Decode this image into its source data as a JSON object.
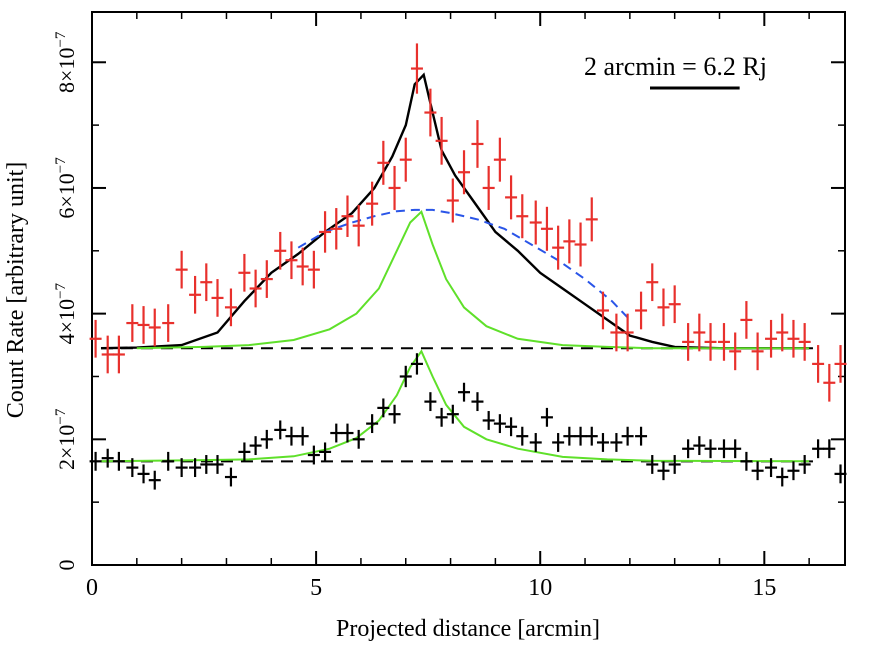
{
  "chart_data": {
    "type": "scatter",
    "title": "",
    "xlabel": "Projected distance [arcmin]",
    "ylabel": "Count Rate [arbitrary unit]",
    "xlim": [
      0,
      16.8
    ],
    "ylim": [
      0,
      8.8
    ],
    "x_ticks": [
      0,
      5,
      10,
      15
    ],
    "x_tick_labels": [
      "0",
      "5",
      "10",
      "15"
    ],
    "y_ticks": [
      0,
      2,
      4,
      6,
      8
    ],
    "y_tick_labels": [
      {
        "mantissa": "",
        "exp": "",
        "plain": "0"
      },
      {
        "mantissa": "2×10",
        "exp": "−7",
        "plain": ""
      },
      {
        "mantissa": "4×10",
        "exp": "−7",
        "plain": ""
      },
      {
        "mantissa": "6×10",
        "exp": "−7",
        "plain": ""
      },
      {
        "mantissa": "8×10",
        "exp": "−7",
        "plain": ""
      }
    ],
    "y_unit_note": "y values in units of 1e-7",
    "annotation": {
      "text": "2 arcmin = 6.2 Rj",
      "scale_bar_arcmin": 2
    },
    "colors": {
      "red_data": "#e8302c",
      "black_data": "#000000",
      "total_model": "#000000",
      "broad_model": "#2a55e8",
      "narrow_model": "#5fe02a",
      "baseline": "#000000"
    },
    "series": [
      {
        "name": "red data",
        "x": [
          0.08,
          0.35,
          0.6,
          0.9,
          1.15,
          1.4,
          1.7,
          2.0,
          2.3,
          2.55,
          2.8,
          3.1,
          3.4,
          3.65,
          3.9,
          4.2,
          4.45,
          4.7,
          4.95,
          5.2,
          5.45,
          5.7,
          5.95,
          6.25,
          6.5,
          6.75,
          7.0,
          7.25,
          7.55,
          7.8,
          8.05,
          8.3,
          8.6,
          8.85,
          9.1,
          9.35,
          9.6,
          9.9,
          10.15,
          10.4,
          10.65,
          10.9,
          11.15,
          11.4,
          11.7,
          11.95,
          12.25,
          12.5,
          12.75,
          13.0,
          13.3,
          13.55,
          13.8,
          14.1,
          14.35,
          14.6,
          14.85,
          15.15,
          15.4,
          15.65,
          15.9,
          16.2,
          16.45,
          16.7
        ],
        "y": [
          3.6,
          3.35,
          3.35,
          3.85,
          3.82,
          3.78,
          3.85,
          4.7,
          4.3,
          4.5,
          4.25,
          4.1,
          4.65,
          4.4,
          4.55,
          5.0,
          4.85,
          4.75,
          4.7,
          5.3,
          5.35,
          5.55,
          5.4,
          5.75,
          6.4,
          6.0,
          6.45,
          7.9,
          7.2,
          6.75,
          5.8,
          6.25,
          6.7,
          6.0,
          6.45,
          5.85,
          5.55,
          5.45,
          5.35,
          5.05,
          5.15,
          5.1,
          5.5,
          4.05,
          3.7,
          3.7,
          4.05,
          4.5,
          4.1,
          4.15,
          3.55,
          3.7,
          3.55,
          3.55,
          3.4,
          3.9,
          3.4,
          3.6,
          3.7,
          3.6,
          3.55,
          3.2,
          2.9,
          3.2
        ],
        "yerr": [
          0.3,
          0.3,
          0.3,
          0.3,
          0.3,
          0.3,
          0.3,
          0.3,
          0.3,
          0.3,
          0.3,
          0.3,
          0.3,
          0.3,
          0.3,
          0.3,
          0.3,
          0.3,
          0.3,
          0.33,
          0.33,
          0.33,
          0.33,
          0.35,
          0.35,
          0.35,
          0.35,
          0.4,
          0.38,
          0.38,
          0.35,
          0.35,
          0.38,
          0.35,
          0.35,
          0.35,
          0.35,
          0.35,
          0.35,
          0.35,
          0.35,
          0.35,
          0.35,
          0.3,
          0.3,
          0.3,
          0.3,
          0.3,
          0.3,
          0.3,
          0.3,
          0.3,
          0.3,
          0.3,
          0.3,
          0.3,
          0.3,
          0.3,
          0.3,
          0.3,
          0.3,
          0.3,
          0.3,
          0.3
        ]
      },
      {
        "name": "black data",
        "x": [
          0.08,
          0.35,
          0.6,
          0.9,
          1.15,
          1.4,
          1.7,
          2.0,
          2.3,
          2.55,
          2.8,
          3.1,
          3.4,
          3.65,
          3.9,
          4.2,
          4.45,
          4.7,
          4.95,
          5.2,
          5.45,
          5.7,
          5.95,
          6.25,
          6.5,
          6.75,
          7.0,
          7.25,
          7.55,
          7.8,
          8.05,
          8.3,
          8.6,
          8.85,
          9.1,
          9.35,
          9.6,
          9.9,
          10.15,
          10.4,
          10.65,
          10.9,
          11.15,
          11.4,
          11.7,
          11.95,
          12.25,
          12.5,
          12.75,
          13.0,
          13.3,
          13.55,
          13.8,
          14.1,
          14.35,
          14.6,
          14.85,
          15.15,
          15.4,
          15.65,
          15.9,
          16.2,
          16.45,
          16.7
        ],
        "y": [
          1.65,
          1.7,
          1.65,
          1.55,
          1.45,
          1.35,
          1.65,
          1.55,
          1.55,
          1.6,
          1.6,
          1.4,
          1.8,
          1.9,
          2.0,
          2.15,
          2.05,
          2.05,
          1.75,
          1.8,
          2.1,
          2.1,
          2.0,
          2.25,
          2.5,
          2.4,
          3.0,
          3.2,
          2.6,
          2.35,
          2.4,
          2.75,
          2.6,
          2.3,
          2.25,
          2.2,
          2.05,
          1.95,
          2.35,
          1.95,
          2.05,
          2.05,
          2.05,
          1.95,
          1.95,
          2.05,
          2.05,
          1.6,
          1.5,
          1.6,
          1.85,
          1.9,
          1.85,
          1.85,
          1.85,
          1.65,
          1.5,
          1.55,
          1.4,
          1.5,
          1.6,
          1.85,
          1.85,
          1.45
        ],
        "yerr": [
          0.15,
          0.15,
          0.15,
          0.15,
          0.15,
          0.15,
          0.15,
          0.15,
          0.15,
          0.15,
          0.15,
          0.15,
          0.15,
          0.15,
          0.15,
          0.15,
          0.15,
          0.15,
          0.15,
          0.15,
          0.15,
          0.15,
          0.15,
          0.15,
          0.15,
          0.15,
          0.17,
          0.17,
          0.15,
          0.15,
          0.15,
          0.15,
          0.15,
          0.15,
          0.15,
          0.15,
          0.15,
          0.15,
          0.15,
          0.15,
          0.15,
          0.15,
          0.15,
          0.15,
          0.15,
          0.15,
          0.15,
          0.15,
          0.15,
          0.15,
          0.15,
          0.15,
          0.15,
          0.15,
          0.15,
          0.15,
          0.15,
          0.15,
          0.15,
          0.15,
          0.15,
          0.15,
          0.15,
          0.15
        ]
      }
    ],
    "models": [
      {
        "name": "total model",
        "style": "solid",
        "x": [
          0.2,
          1.0,
          2.0,
          2.8,
          3.4,
          4.0,
          4.6,
          5.2,
          5.8,
          6.3,
          6.7,
          7.0,
          7.2,
          7.4,
          7.6,
          7.8,
          8.1,
          8.5,
          9.0,
          9.5,
          10.0,
          10.5,
          11.0,
          11.5,
          12.0,
          12.5,
          13.0,
          14.0,
          15.0,
          16.0
        ],
        "y": [
          3.45,
          3.46,
          3.5,
          3.7,
          4.2,
          4.65,
          4.95,
          5.3,
          5.6,
          6.0,
          6.5,
          7.0,
          7.65,
          7.8,
          7.2,
          6.6,
          6.2,
          5.8,
          5.3,
          5.0,
          4.65,
          4.4,
          4.15,
          3.9,
          3.65,
          3.55,
          3.47,
          3.45,
          3.45,
          3.45
        ]
      },
      {
        "name": "broad component",
        "style": "dashed",
        "x": [
          4.6,
          5.2,
          5.8,
          6.3,
          6.8,
          7.2,
          7.6,
          8.0,
          8.6,
          9.2,
          9.8,
          10.4,
          11.0,
          11.6,
          12.0
        ],
        "y": [
          5.05,
          5.3,
          5.45,
          5.55,
          5.63,
          5.65,
          5.65,
          5.6,
          5.5,
          5.35,
          5.1,
          4.85,
          4.55,
          4.2,
          3.9
        ]
      },
      {
        "name": "narrow component (upper)",
        "style": "solid",
        "x": [
          1.0,
          2.5,
          3.5,
          4.5,
          5.3,
          5.9,
          6.4,
          6.8,
          7.1,
          7.35,
          7.6,
          7.9,
          8.3,
          8.8,
          9.5,
          10.5,
          11.5,
          12.5,
          16.0
        ],
        "y": [
          3.45,
          3.47,
          3.5,
          3.58,
          3.75,
          4.0,
          4.4,
          5.0,
          5.45,
          5.62,
          5.1,
          4.55,
          4.1,
          3.8,
          3.6,
          3.5,
          3.47,
          3.45,
          3.45
        ]
      },
      {
        "name": "narrow component (lower)",
        "style": "solid",
        "x": [
          0.2,
          2.5,
          3.5,
          4.5,
          5.3,
          5.9,
          6.4,
          6.8,
          7.1,
          7.35,
          7.6,
          7.9,
          8.3,
          8.8,
          9.5,
          10.5,
          11.5,
          12.5,
          16.0
        ],
        "y": [
          1.65,
          1.67,
          1.68,
          1.73,
          1.85,
          2.02,
          2.3,
          2.7,
          3.15,
          3.4,
          3.0,
          2.55,
          2.2,
          2.0,
          1.85,
          1.72,
          1.68,
          1.66,
          1.65
        ]
      }
    ],
    "baselines": [
      {
        "name": "upper baseline",
        "y": 3.45,
        "x": [
          0.2,
          16.2
        ]
      },
      {
        "name": "lower baseline",
        "y": 1.65,
        "x": [
          0.2,
          16.2
        ]
      }
    ]
  }
}
